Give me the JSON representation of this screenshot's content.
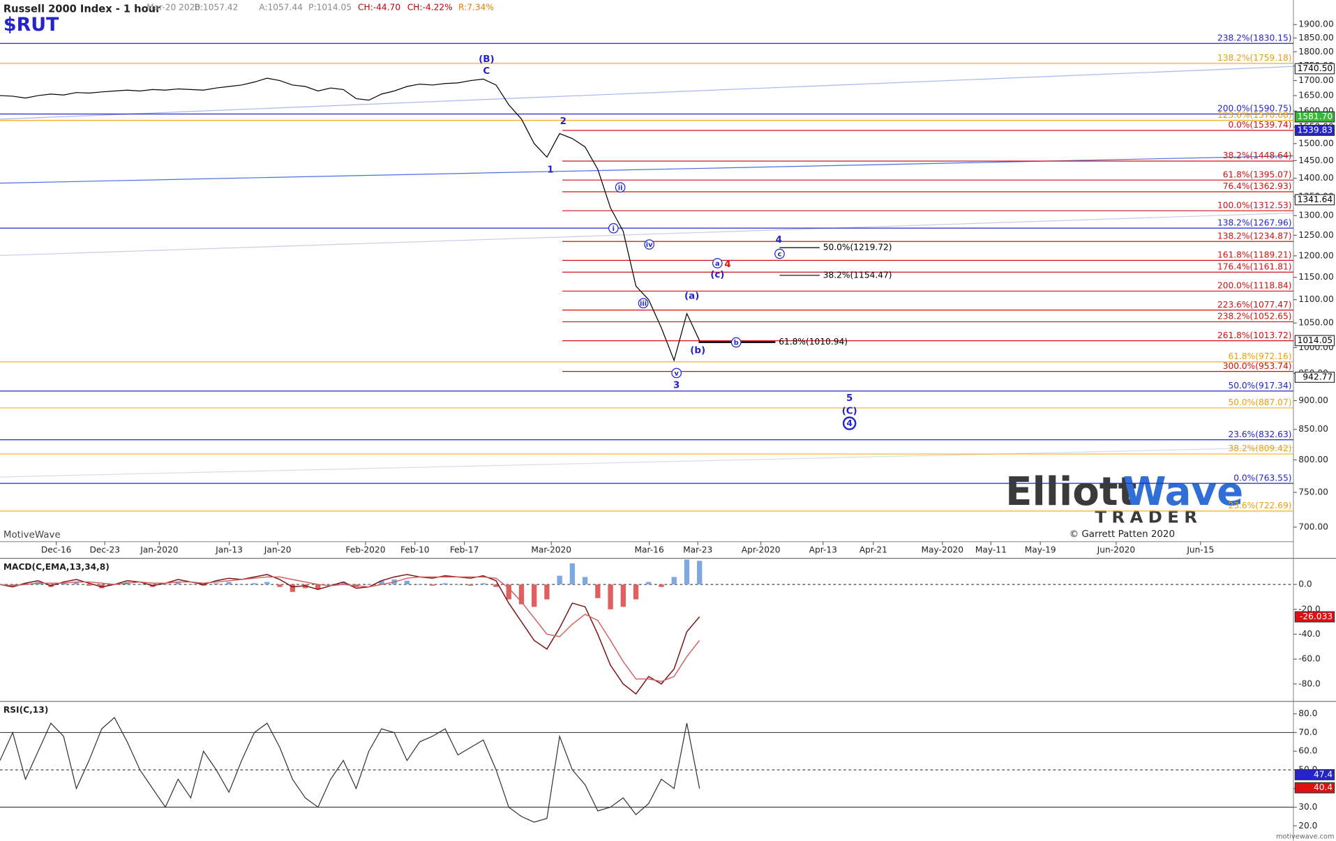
{
  "header": {
    "title": "Russell 2000 Index - 1 hour",
    "symbol": "$RUT",
    "quote": [
      "Mar-20 2020",
      "B:1057.42",
      "A:1057.44",
      "P:1014.05",
      "CH:-44.70",
      "CH:-4.22%",
      "R:7.34%"
    ]
  },
  "watermark": "MotiveWave",
  "logo": {
    "first": "Elliott",
    "second": "Wave",
    "sub": "TRADER"
  },
  "copyright": "© Garrett Patten 2020",
  "footer": "motivewave.com",
  "chart_data": [
    {
      "type": "line",
      "color": "#000000",
      "log": true,
      "ylim": [
        680,
        1995
      ],
      "yticks": [
        {
          "value": 700,
          "label": "700.00"
        },
        {
          "value": 750,
          "label": "750.00"
        },
        {
          "value": 800,
          "label": "800.00"
        },
        {
          "value": 850,
          "label": "850.00"
        },
        {
          "value": 900,
          "label": "900.00"
        },
        {
          "value": 950,
          "label": "950.00"
        },
        {
          "value": 1000,
          "label": "1000.00"
        },
        {
          "value": 1050,
          "label": "1050.00"
        },
        {
          "value": 1100,
          "label": "1100.00"
        },
        {
          "value": 1150,
          "label": "1150.00"
        },
        {
          "value": 1200,
          "label": "1200.00"
        },
        {
          "value": 1250,
          "label": "1250.00"
        },
        {
          "value": 1300,
          "label": "1300.00"
        },
        {
          "value": 1350,
          "label": "1350.00"
        },
        {
          "value": 1400,
          "label": "1400.00"
        },
        {
          "value": 1450,
          "label": "1450.00"
        },
        {
          "value": 1500,
          "label": "1500.00"
        },
        {
          "value": 1550,
          "label": "1550.00"
        },
        {
          "value": 1600,
          "label": "1600.00"
        },
        {
          "value": 1650,
          "label": "1650.00"
        },
        {
          "value": 1700,
          "label": "1700.00"
        },
        {
          "value": 1750,
          "label": "1750.00"
        },
        {
          "value": 1800,
          "label": "1800.00"
        },
        {
          "value": 1850,
          "label": "1850.00"
        },
        {
          "value": 1900,
          "label": "1900.00"
        }
      ],
      "date_labels": [
        "Dec-16",
        "Dec-23",
        "Jan-2020",
        "Jan-13",
        "Jan-20",
        "Feb-2020",
        "Feb-10",
        "Feb-17",
        "Mar-2020",
        "Mar-16",
        "Mar-23",
        "Apr-2020",
        "Apr-13",
        "Apr-21",
        "May-2020",
        "May-11",
        "May-19",
        "Jun-2020",
        "Jun-15"
      ],
      "values": [
        1650,
        1648,
        1642,
        1650,
        1655,
        1652,
        1660,
        1658,
        1662,
        1665,
        1668,
        1665,
        1670,
        1668,
        1672,
        1670,
        1668,
        1675,
        1680,
        1685,
        1695,
        1708,
        1700,
        1685,
        1680,
        1665,
        1675,
        1670,
        1640,
        1635,
        1655,
        1665,
        1680,
        1688,
        1685,
        1690,
        1692,
        1700,
        1705,
        1685,
        1620,
        1575,
        1500,
        1460,
        1530,
        1515,
        1490,
        1425,
        1320,
        1260,
        1130,
        1100,
        1040,
        975,
        1070,
        1014
      ],
      "levels": [
        {
          "label": "238.2%(1830.15)",
          "value": 1830.15,
          "color": "#2424c8",
          "from": "left"
        },
        {
          "label": "138.2%(1759.18)",
          "value": 1759.18,
          "color": "#f0b020",
          "from": "left"
        },
        {
          "label": "200.0%(1590.75)",
          "value": 1590.75,
          "color": "#2424c8",
          "from": "left"
        },
        {
          "label": "123.6%(1570.68)",
          "value": 1570.68,
          "color": "#f0b020",
          "from": "left"
        },
        {
          "label": "0.0%(1539.74)",
          "value": 1539.74,
          "color": "#d01010",
          "from": "wave"
        },
        {
          "label": "38.2%(1448.64)",
          "value": 1448.64,
          "color": "#d01010",
          "from": "wave"
        },
        {
          "label": "61.8%(1395.07)",
          "value": 1395.07,
          "color": "#d01010",
          "from": "wave"
        },
        {
          "label": "76.4%(1362.93)",
          "value": 1362.93,
          "color": "#d01010",
          "from": "wave"
        },
        {
          "label": "100.0%(1312.53)",
          "value": 1312.53,
          "color": "#d01010",
          "from": "wave"
        },
        {
          "label": "138.2%(1267.96)",
          "value": 1267.96,
          "color": "#2424c8",
          "from": "left"
        },
        {
          "label": "138.2%(1234.87)",
          "value": 1234.87,
          "color": "#d01010",
          "from": "wave"
        },
        {
          "label": "161.8%(1189.21)",
          "value": 1189.21,
          "color": "#d01010",
          "from": "wave"
        },
        {
          "label": "176.4%(1161.81)",
          "value": 1161.81,
          "color": "#d01010",
          "from": "wave"
        },
        {
          "label": "200.0%(1118.84)",
          "value": 1118.84,
          "color": "#d01010",
          "from": "wave"
        },
        {
          "label": "223.6%(1077.47)",
          "value": 1077.47,
          "color": "#d01010",
          "from": "wave"
        },
        {
          "label": "238.2%(1052.65)",
          "value": 1052.65,
          "color": "#d01010",
          "from": "wave"
        },
        {
          "label": "261.8%(1013.72)",
          "value": 1013.72,
          "color": "#d01010",
          "from": "wave"
        },
        {
          "label": "61.8%(972.16)",
          "value": 972.16,
          "color": "#f0b020",
          "from": "left"
        },
        {
          "label": "300.0%(953.74)",
          "value": 953.74,
          "color": "#d01010",
          "from": "wave"
        },
        {
          "label": "50.0%(917.34)",
          "value": 917.34,
          "color": "#2424c8",
          "from": "left"
        },
        {
          "label": "50.0%(887.07)",
          "value": 887.07,
          "color": "#f0b020",
          "from": "left"
        },
        {
          "label": "23.6%(832.63)",
          "value": 832.63,
          "color": "#2424c8",
          "from": "left"
        },
        {
          "label": "38.2%(809.42)",
          "value": 809.42,
          "color": "#f0b020",
          "from": "left"
        },
        {
          "label": "0.0%(763.55)",
          "value": 763.55,
          "color": "#2424c8",
          "from": "left"
        },
        {
          "label": "23.6%(722.69)",
          "value": 722.69,
          "color": "#f0b020",
          "from": "left"
        }
      ],
      "short_levels": [
        {
          "label": "50.0%(1219.72)",
          "value": 1219.72
        },
        {
          "label": "38.2%(1154.47)",
          "value": 1154.47
        },
        {
          "label": "61.8%(1010.94)",
          "value": 1010.94
        }
      ],
      "price_markers": [
        {
          "value": 1740.5,
          "label": "1740.50",
          "color": "#ffffff"
        },
        {
          "value": 1581.7,
          "label": "1581.70",
          "color": "#3cb43c"
        },
        {
          "value": 1539.83,
          "label": "1539.83",
          "color": "#2424c8"
        },
        {
          "value": 1341.64,
          "label": "1341.64",
          "color": "#ffffff"
        },
        {
          "value": 1014.05,
          "label": "1014.05",
          "color": "#ffffff"
        },
        {
          "value": 942.77,
          "label": "942.77",
          "color": "#ffffff"
        }
      ],
      "wave_labels": [
        {
          "text": "(B)"
        },
        {
          "text": "C"
        },
        {
          "text": "2"
        },
        {
          "text": "1"
        },
        {
          "text": "ii",
          "circled": true
        },
        {
          "text": "i",
          "circled": true
        },
        {
          "text": "iv",
          "circled": true
        },
        {
          "text": "iii",
          "circled": true
        },
        {
          "text": "v",
          "circled": true
        },
        {
          "text": "3"
        },
        {
          "text": "(a)"
        },
        {
          "text": "(b)"
        },
        {
          "text": "a",
          "circled": true
        },
        {
          "text": "(c)"
        },
        {
          "text": "4",
          "color": "#e01010"
        },
        {
          "text": "4"
        },
        {
          "text": "c",
          "circled": true
        },
        {
          "text": "b",
          "circled": true
        },
        {
          "text": "5"
        },
        {
          "text": "(C)"
        },
        {
          "text": "4",
          "circled": true
        }
      ]
    },
    {
      "type": "macd",
      "title": "MACD(C,EMA,13,34,8)",
      "ylim": [
        -93,
        20
      ],
      "yticks": [
        {
          "value": 0,
          "label": "0.0"
        },
        {
          "value": -20,
          "label": "-20.0"
        },
        {
          "value": -40,
          "label": "-40.0"
        },
        {
          "value": -60,
          "label": "-60.0"
        },
        {
          "value": -80,
          "label": "-80.0"
        }
      ],
      "series": [
        {
          "color": "#7a1010",
          "values": [
            0,
            -2,
            1,
            3,
            -1,
            2,
            4,
            1,
            -2,
            0,
            3,
            2,
            -1,
            1,
            4,
            2,
            0,
            3,
            5,
            4,
            6,
            8,
            4,
            -2,
            -1,
            -4,
            -1,
            2,
            -3,
            -2,
            3,
            6,
            8,
            6,
            5,
            7,
            6,
            5,
            7,
            3,
            -15,
            -30,
            -45,
            -52,
            -35,
            -15,
            -18,
            -40,
            -65,
            -80,
            -88,
            -74,
            -80,
            -68,
            -38,
            -26
          ]
        },
        {
          "color": "#d06060",
          "values": [
            0,
            -1,
            0,
            1,
            1,
            1,
            2,
            2,
            1,
            0,
            1,
            2,
            1,
            1,
            2,
            2,
            1,
            2,
            3,
            4,
            5,
            6,
            6,
            4,
            2,
            0,
            -1,
            0,
            -1,
            -2,
            0,
            2,
            5,
            6,
            6,
            6,
            6,
            6,
            6,
            5,
            -3,
            -14,
            -27,
            -40,
            -42,
            -32,
            -24,
            -29,
            -45,
            -62,
            -76,
            -76,
            -78,
            -74,
            -58,
            -45
          ]
        }
      ],
      "histogram": {
        "up_color": "#7fa8e0",
        "down_color": "#e06060",
        "values": [
          0,
          -1,
          1,
          2,
          -2,
          1,
          2,
          -1,
          -3,
          0,
          2,
          0,
          -2,
          0,
          2,
          0,
          -1,
          1,
          2,
          0,
          1,
          2,
          -2,
          -6,
          -3,
          -4,
          0,
          2,
          -2,
          0,
          3,
          4,
          3,
          0,
          -1,
          1,
          0,
          -1,
          1,
          -2,
          -12,
          -16,
          -18,
          -12,
          7,
          17,
          6,
          -11,
          -20,
          -18,
          -12,
          2,
          -2,
          6,
          20,
          19
        ]
      },
      "current": {
        "value": -26.033,
        "label": "-26.033",
        "color": "#e01010"
      }
    },
    {
      "type": "line",
      "title": "RSI(C,13)",
      "color": "#333333",
      "ylim": [
        13,
        86
      ],
      "yticks": [
        {
          "value": 80,
          "label": "80.0"
        },
        {
          "value": 70,
          "label": "70.0"
        },
        {
          "value": 60,
          "label": "60.0"
        },
        {
          "value": 50,
          "label": "50.0"
        },
        {
          "value": 40,
          "label": "40.0"
        },
        {
          "value": 30,
          "label": "30.0"
        },
        {
          "value": 20,
          "label": "20.0"
        }
      ],
      "bands": [
        70,
        30
      ],
      "midline": 50,
      "values": [
        55,
        70,
        45,
        60,
        75,
        68,
        40,
        55,
        72,
        78,
        65,
        50,
        40,
        30,
        45,
        35,
        60,
        50,
        38,
        55,
        70,
        75,
        62,
        45,
        35,
        30,
        45,
        55,
        40,
        60,
        72,
        70,
        55,
        65,
        68,
        72,
        58,
        62,
        66,
        50,
        30,
        25,
        22,
        24,
        68,
        50,
        42,
        28,
        30,
        35,
        26,
        32,
        45,
        40,
        75,
        40
      ],
      "markers": [
        {
          "value": 47.4,
          "label": "47.4",
          "color": "#2424c8"
        },
        {
          "value": 40.4,
          "label": "40.4",
          "color": "#e01010"
        }
      ]
    }
  ]
}
